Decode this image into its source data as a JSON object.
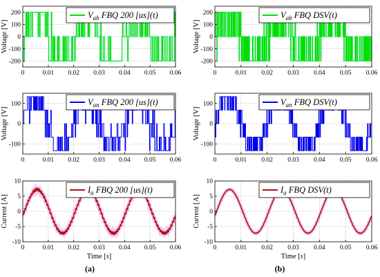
{
  "figure": {
    "panel_labels": [
      "(a)",
      "(b)"
    ],
    "colors": {
      "line_ab": "#00e000",
      "line_an": "#0000ee",
      "line_ia": "#a31515",
      "glow_ia": "#ff9fe2",
      "glow_ab": "#a8ecff",
      "grid": "#dcdcdc",
      "axis": "#000000"
    }
  },
  "chart_data": [
    {
      "id": "vab_fbq",
      "type": "line",
      "xlim": [
        0,
        0.06
      ],
      "ylim": [
        -250,
        250
      ],
      "xticks": [
        "0",
        "0.01",
        "0.02",
        "0.03",
        "0.04",
        "0.05",
        "0.06"
      ],
      "yticks": [
        "-200",
        "-100",
        "0",
        "100",
        "200"
      ],
      "ylabel": "Voltage [V]",
      "xlabel": "",
      "legend": {
        "prefix": "V",
        "sub": "ab",
        "suffix": "FBQ 200 [us](t)"
      },
      "legend_position": "top-right",
      "grid": true,
      "series": [
        {
          "kind": "vab",
          "frequency_hz": 50,
          "levels": [
            -200,
            0,
            200
          ],
          "pwm_period_s": 0.0002,
          "switching": "FBQ 200 us"
        }
      ]
    },
    {
      "id": "vab_dsv",
      "type": "line",
      "xlim": [
        0,
        0.06
      ],
      "ylim": [
        -250,
        250
      ],
      "xticks": [
        "0",
        "0.01",
        "0.02",
        "0.03",
        "0.04",
        "0.05",
        "0.06"
      ],
      "yticks": [
        "-200",
        "-100",
        "0",
        "100",
        "200"
      ],
      "ylabel": "Voltage [V]",
      "xlabel": "",
      "legend": {
        "prefix": "V",
        "sub": "ab",
        "suffix": "FBQ DSV(t)"
      },
      "legend_position": "top-right",
      "grid": true,
      "series": [
        {
          "kind": "vab",
          "frequency_hz": 50,
          "levels": [
            -200,
            0,
            200
          ],
          "switching": "DSV"
        }
      ]
    },
    {
      "id": "van_fbq",
      "type": "line",
      "xlim": [
        0,
        0.06
      ],
      "ylim": [
        -150,
        150
      ],
      "xticks": [
        "0",
        "0.01",
        "0.02",
        "0.03",
        "0.04",
        "0.05",
        "0.06"
      ],
      "yticks": [
        "-100",
        "0",
        "100"
      ],
      "ylabel": "Voltage [V]",
      "xlabel": "",
      "legend": {
        "prefix": "V",
        "sub": "an",
        "suffix": "FBQ 200 [us](t)"
      },
      "legend_position": "top-right",
      "grid": true,
      "series": [
        {
          "kind": "van",
          "frequency_hz": 50,
          "levels": [
            -133.3,
            -66.7,
            0,
            66.7,
            133.3
          ],
          "pwm_period_s": 0.0002,
          "switching": "FBQ 200 us"
        }
      ]
    },
    {
      "id": "van_dsv",
      "type": "line",
      "xlim": [
        0,
        0.06
      ],
      "ylim": [
        -150,
        150
      ],
      "xticks": [
        "0",
        "0.01",
        "0.02",
        "0.03",
        "0.04",
        "0.05",
        "0.06"
      ],
      "yticks": [
        "-100",
        "0",
        "100"
      ],
      "ylabel": "Voltage [V]",
      "xlabel": "",
      "legend": {
        "prefix": "V",
        "sub": "an",
        "suffix": "FBQ DSV(t)"
      },
      "legend_position": "top-right",
      "grid": true,
      "series": [
        {
          "kind": "van",
          "frequency_hz": 50,
          "levels": [
            -133.3,
            -66.7,
            0,
            66.7,
            133.3
          ],
          "switching": "DSV"
        }
      ]
    },
    {
      "id": "ia_fbq",
      "type": "line",
      "xlim": [
        0,
        0.06
      ],
      "ylim": [
        -10,
        10
      ],
      "xticks": [
        "0",
        "0.01",
        "0.02",
        "0.03",
        "0.04",
        "0.05",
        "0.06"
      ],
      "yticks": [
        "-10",
        "-5",
        "0",
        "5",
        "10"
      ],
      "ylabel": "Current [A]",
      "xlabel": "Time [s]",
      "legend": {
        "prefix": "I",
        "sub": "a",
        "suffix": "FBQ 200 [us](t)"
      },
      "legend_position": "top-right",
      "grid": true,
      "series": [
        {
          "kind": "ia",
          "frequency_hz": 50,
          "amplitude_a": 7.2,
          "ripple_a": 0.6,
          "switching": "FBQ 200 us"
        }
      ]
    },
    {
      "id": "ia_dsv",
      "type": "line",
      "xlim": [
        0,
        0.06
      ],
      "ylim": [
        -10,
        10
      ],
      "xticks": [
        "0",
        "0.01",
        "0.02",
        "0.03",
        "0.04",
        "0.05",
        "0.06"
      ],
      "yticks": [
        "-10",
        "-5",
        "0",
        "5",
        "10"
      ],
      "ylabel": "Current [A]",
      "xlabel": "Time [s]",
      "legend": {
        "prefix": "I",
        "sub": "a",
        "suffix": "FBQ DSV(t)"
      },
      "legend_position": "top-right",
      "grid": true,
      "series": [
        {
          "kind": "ia",
          "frequency_hz": 50,
          "amplitude_a": 7.2,
          "ripple_a": 0.15,
          "switching": "DSV"
        }
      ]
    }
  ]
}
